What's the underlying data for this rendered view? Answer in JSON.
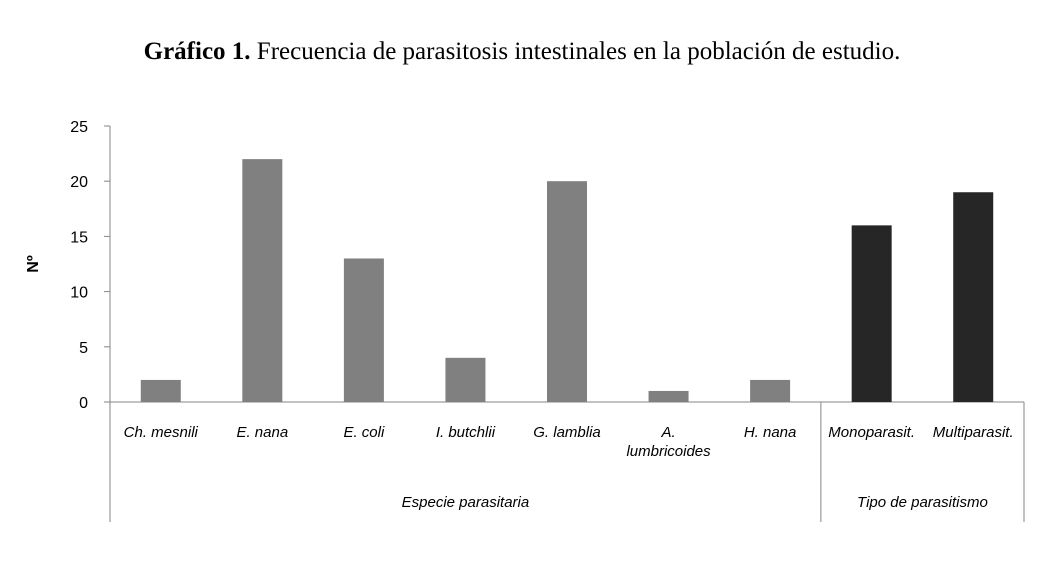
{
  "title": {
    "bold": "Gráfico 1.",
    "text": "Frecuencia de parasitosis intestinales en la población de estudio."
  },
  "chart_data": {
    "type": "bar",
    "ylabel": "Nº",
    "ylim": [
      0,
      25
    ],
    "yticks": [
      "0",
      "5",
      "10",
      "15",
      "20",
      "25"
    ],
    "grid": false,
    "legend": "none",
    "categories": [
      "Ch. mesnili",
      "E. nana",
      "E. coli",
      "I. butchlii",
      "G. lamblia",
      "A. lumbricoides",
      "H. nana",
      "Monoparasit.",
      "Multiparasit."
    ],
    "values": [
      2,
      22,
      13,
      4,
      20,
      1,
      2,
      16,
      19
    ],
    "groups": [
      {
        "label": "Especie parasitaria",
        "count": 7,
        "color": "#808080"
      },
      {
        "label": "Tipo de parasitismo",
        "count": 2,
        "color": "#262626"
      }
    ]
  }
}
